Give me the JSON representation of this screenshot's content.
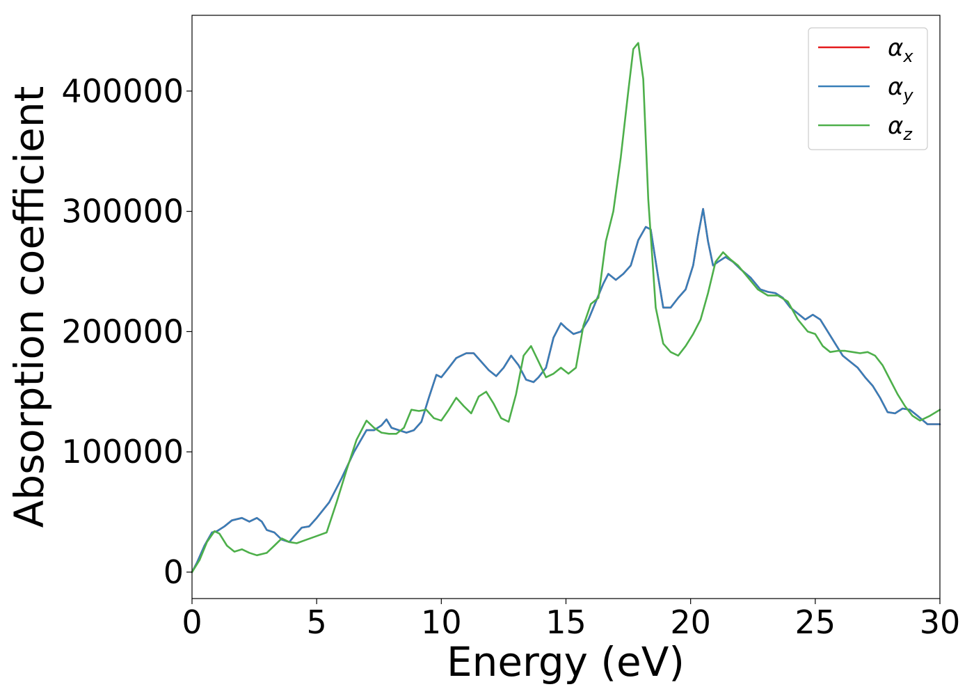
{
  "chart_data": {
    "type": "line",
    "title": "",
    "xlabel": "Energy (eV)",
    "ylabel": "Absorption coefficient",
    "xlim": [
      0,
      30
    ],
    "ylim": [
      -22000,
      463000
    ],
    "xticks": [
      0,
      5,
      10,
      15,
      20,
      25,
      30
    ],
    "yticks": [
      0,
      100000,
      200000,
      300000,
      400000
    ],
    "grid": false,
    "legend_position": "top-right",
    "series": [
      {
        "name": "α",
        "subscript": "x",
        "color": "#e41a1c",
        "x": [
          0,
          0.2,
          0.5,
          0.8,
          1.0,
          1.3,
          1.6,
          2.0,
          2.3,
          2.6,
          2.8,
          3.0,
          3.3,
          3.6,
          3.9,
          4.1,
          4.4,
          4.7,
          5.0,
          5.5,
          6.0,
          6.5,
          7.0,
          7.3,
          7.6,
          7.8,
          8.0,
          8.3,
          8.6,
          8.9,
          9.2,
          9.5,
          9.8,
          10.0,
          10.3,
          10.6,
          11.0,
          11.3,
          11.6,
          11.9,
          12.2,
          12.5,
          12.8,
          13.1,
          13.4,
          13.7,
          13.9,
          14.2,
          14.5,
          14.8,
          15.0,
          15.3,
          15.6,
          15.9,
          16.2,
          16.5,
          16.7,
          17.0,
          17.3,
          17.6,
          17.9,
          18.2,
          18.4,
          18.7,
          18.9,
          19.2,
          19.5,
          19.8,
          20.1,
          20.3,
          20.5,
          20.7,
          20.9,
          21.1,
          21.4,
          21.7,
          22.0,
          22.4,
          22.8,
          23.1,
          23.4,
          23.7,
          24.0,
          24.3,
          24.6,
          24.9,
          25.2,
          25.5,
          25.8,
          26.1,
          26.4,
          26.7,
          27.0,
          27.3,
          27.6,
          27.9,
          28.2,
          28.5,
          28.8,
          29.1,
          29.5,
          30.0
        ],
        "y": [
          0,
          8000,
          22000,
          33000,
          34000,
          38000,
          43000,
          45000,
          42000,
          45000,
          42000,
          35000,
          33000,
          27000,
          25000,
          30000,
          37000,
          38000,
          45000,
          58000,
          78000,
          100000,
          118000,
          118000,
          122000,
          127000,
          120000,
          118000,
          116000,
          118000,
          125000,
          145000,
          164000,
          162000,
          170000,
          178000,
          182000,
          182000,
          175000,
          168000,
          163000,
          170000,
          180000,
          172000,
          160000,
          158000,
          162000,
          170000,
          195000,
          207000,
          203000,
          198000,
          200000,
          210000,
          225000,
          240000,
          248000,
          243000,
          248000,
          255000,
          276000,
          287000,
          285000,
          245000,
          220000,
          220000,
          228000,
          235000,
          255000,
          280000,
          302000,
          275000,
          255000,
          258000,
          262000,
          258000,
          252000,
          245000,
          235000,
          233000,
          232000,
          228000,
          220000,
          215000,
          210000,
          214000,
          210000,
          200000,
          190000,
          180000,
          175000,
          170000,
          162000,
          155000,
          145000,
          133000,
          132000,
          136000,
          135000,
          130000,
          123000,
          123000
        ]
      },
      {
        "name": "α",
        "subscript": "y",
        "color": "#377eb8",
        "x": [
          0,
          0.2,
          0.5,
          0.8,
          1.0,
          1.3,
          1.6,
          2.0,
          2.3,
          2.6,
          2.8,
          3.0,
          3.3,
          3.6,
          3.9,
          4.1,
          4.4,
          4.7,
          5.0,
          5.5,
          6.0,
          6.5,
          7.0,
          7.3,
          7.6,
          7.8,
          8.0,
          8.3,
          8.6,
          8.9,
          9.2,
          9.5,
          9.8,
          10.0,
          10.3,
          10.6,
          11.0,
          11.3,
          11.6,
          11.9,
          12.2,
          12.5,
          12.8,
          13.1,
          13.4,
          13.7,
          13.9,
          14.2,
          14.5,
          14.8,
          15.0,
          15.3,
          15.6,
          15.9,
          16.2,
          16.5,
          16.7,
          17.0,
          17.3,
          17.6,
          17.9,
          18.2,
          18.4,
          18.7,
          18.9,
          19.2,
          19.5,
          19.8,
          20.1,
          20.3,
          20.5,
          20.7,
          20.9,
          21.1,
          21.4,
          21.7,
          22.0,
          22.4,
          22.8,
          23.1,
          23.4,
          23.7,
          24.0,
          24.3,
          24.6,
          24.9,
          25.2,
          25.5,
          25.8,
          26.1,
          26.4,
          26.7,
          27.0,
          27.3,
          27.6,
          27.9,
          28.2,
          28.5,
          28.8,
          29.1,
          29.5,
          30.0
        ],
        "y": [
          0,
          8000,
          22000,
          33000,
          34000,
          38000,
          43000,
          45000,
          42000,
          45000,
          42000,
          35000,
          33000,
          27000,
          25000,
          30000,
          37000,
          38000,
          45000,
          58000,
          78000,
          100000,
          118000,
          118000,
          122000,
          127000,
          120000,
          118000,
          116000,
          118000,
          125000,
          145000,
          164000,
          162000,
          170000,
          178000,
          182000,
          182000,
          175000,
          168000,
          163000,
          170000,
          180000,
          172000,
          160000,
          158000,
          162000,
          170000,
          195000,
          207000,
          203000,
          198000,
          200000,
          210000,
          225000,
          240000,
          248000,
          243000,
          248000,
          255000,
          276000,
          287000,
          285000,
          245000,
          220000,
          220000,
          228000,
          235000,
          255000,
          280000,
          302000,
          275000,
          255000,
          258000,
          262000,
          258000,
          252000,
          245000,
          235000,
          233000,
          232000,
          228000,
          220000,
          215000,
          210000,
          214000,
          210000,
          200000,
          190000,
          180000,
          175000,
          170000,
          162000,
          155000,
          145000,
          133000,
          132000,
          136000,
          135000,
          130000,
          123000,
          123000
        ]
      },
      {
        "name": "α",
        "subscript": "z",
        "color": "#4daf4a",
        "x": [
          0,
          0.3,
          0.6,
          0.9,
          1.1,
          1.4,
          1.7,
          2.0,
          2.3,
          2.6,
          3.0,
          3.3,
          3.6,
          3.9,
          4.2,
          4.6,
          5.0,
          5.4,
          5.8,
          6.2,
          6.6,
          7.0,
          7.3,
          7.6,
          7.9,
          8.2,
          8.5,
          8.8,
          9.1,
          9.4,
          9.7,
          10.0,
          10.3,
          10.6,
          10.9,
          11.2,
          11.5,
          11.8,
          12.1,
          12.4,
          12.7,
          13.0,
          13.3,
          13.6,
          13.9,
          14.2,
          14.5,
          14.8,
          15.1,
          15.4,
          15.7,
          16.0,
          16.3,
          16.6,
          16.9,
          17.2,
          17.5,
          17.7,
          17.9,
          18.1,
          18.3,
          18.6,
          18.9,
          19.2,
          19.5,
          19.8,
          20.1,
          20.4,
          20.7,
          21.0,
          21.3,
          21.6,
          21.9,
          22.3,
          22.7,
          23.1,
          23.5,
          23.9,
          24.3,
          24.7,
          25.0,
          25.3,
          25.6,
          25.9,
          26.2,
          26.5,
          26.8,
          27.1,
          27.4,
          27.7,
          28.0,
          28.3,
          28.6,
          28.9,
          29.2,
          29.6,
          30.0
        ],
        "y": [
          0,
          10000,
          25000,
          34000,
          32000,
          22000,
          17000,
          19000,
          16000,
          14000,
          16000,
          22000,
          28000,
          25000,
          24000,
          27000,
          30000,
          33000,
          58000,
          85000,
          110000,
          126000,
          120000,
          116000,
          115000,
          115000,
          120000,
          135000,
          134000,
          135000,
          128000,
          126000,
          135000,
          145000,
          138000,
          132000,
          146000,
          150000,
          140000,
          128000,
          125000,
          148000,
          180000,
          188000,
          175000,
          162000,
          165000,
          170000,
          165000,
          170000,
          205000,
          223000,
          228000,
          275000,
          300000,
          345000,
          400000,
          435000,
          440000,
          410000,
          310000,
          220000,
          190000,
          183000,
          180000,
          188000,
          198000,
          210000,
          232000,
          258000,
          266000,
          260000,
          255000,
          245000,
          235000,
          230000,
          230000,
          225000,
          210000,
          200000,
          198000,
          188000,
          183000,
          184000,
          184000,
          183000,
          182000,
          183000,
          180000,
          172000,
          160000,
          148000,
          138000,
          130000,
          126000,
          130000,
          135000
        ]
      }
    ]
  }
}
